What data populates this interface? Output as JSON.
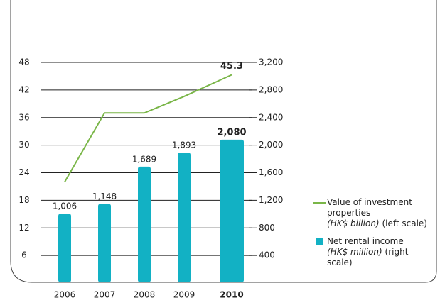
{
  "chart_data": {
    "type": "bar-line",
    "categories": [
      "2006",
      "2007",
      "2008",
      "2009",
      "2010"
    ],
    "highlight": 4,
    "ylim": [
      0,
      48
    ],
    "yticks": [
      6,
      12,
      18,
      24,
      30,
      36,
      42,
      48
    ],
    "y2lim": [
      0,
      3200
    ],
    "y2ticks": [
      {
        "value": 400,
        "label": "400"
      },
      {
        "value": 800,
        "label": "800"
      },
      {
        "value": 1200,
        "label": "1,200"
      },
      {
        "value": 1600,
        "label": "1,600"
      },
      {
        "value": 2000,
        "label": "2,000"
      },
      {
        "value": 2400,
        "label": "2,400"
      },
      {
        "value": 2800,
        "label": "2,800"
      },
      {
        "value": 3200,
        "label": "3,200"
      }
    ],
    "grid": true,
    "series": [
      {
        "name": "Value of investment properties",
        "unit": "(HK$ billion)",
        "scale_note": "(left scale)",
        "type": "line",
        "color": "#7ab648",
        "values": [
          22,
          37,
          37,
          40.6,
          45.3
        ],
        "value_labels": [
          null,
          null,
          null,
          null,
          "45.3"
        ]
      },
      {
        "name": "Net rental income",
        "unit": "(HK$ million)",
        "scale_note": "(right scale)",
        "type": "bar",
        "axis": "y2",
        "color": "#12b1c4",
        "values": [
          1006,
          1148,
          1689,
          1893,
          2080
        ],
        "value_labels": [
          "1,006",
          "1,148",
          "1,689",
          "1,893",
          "2,080"
        ]
      }
    ]
  }
}
